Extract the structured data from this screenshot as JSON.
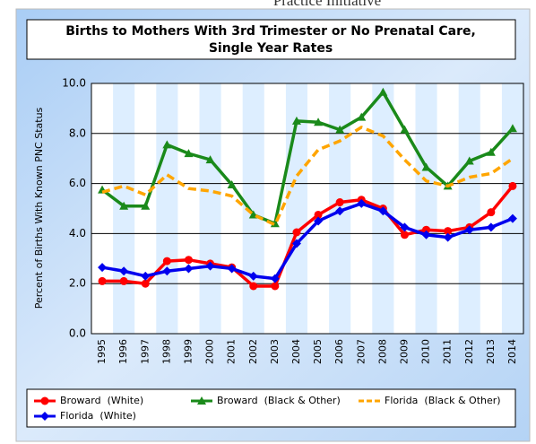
{
  "page_heading": "Practice Initiative",
  "chart_data": {
    "type": "line",
    "title": "Births to Mothers With 3rd Trimester or No Prenatal Care,",
    "subtitle": "Single Year Rates",
    "y_label": "Percent of Births With Known PNC Status",
    "categories": [
      "1995",
      "1996",
      "1997",
      "1998",
      "1999",
      "2000",
      "2001",
      "2002",
      "2003",
      "2004",
      "2005",
      "2006",
      "2007",
      "2008",
      "2009",
      "2010",
      "2011",
      "2012",
      "2013",
      "2014"
    ],
    "ylim": [
      0,
      10
    ],
    "yticks": [
      {
        "value": 0,
        "label": "0.0"
      },
      {
        "value": 2,
        "label": "2.0"
      },
      {
        "value": 4,
        "label": "4.0"
      },
      {
        "value": 6,
        "label": "6.0"
      },
      {
        "value": 8,
        "label": "8.0"
      },
      {
        "value": 10,
        "label": "10.0"
      }
    ],
    "grid": true,
    "legend": "bottom",
    "series": [
      {
        "name": "Broward  (White)",
        "color": "#ff0000",
        "marker": "circle",
        "values": [
          2.1,
          2.1,
          2.0,
          2.9,
          2.95,
          2.8,
          2.65,
          1.9,
          1.9,
          4.05,
          4.75,
          5.25,
          5.35,
          5.0,
          3.95,
          4.15,
          4.1,
          4.25,
          4.85,
          5.9
        ]
      },
      {
        "name": "Broward  (Black & Other)",
        "color": "#1a8a1a",
        "marker": "triangle",
        "values": [
          5.75,
          5.1,
          5.1,
          7.55,
          7.2,
          6.95,
          5.95,
          4.75,
          4.4,
          8.5,
          8.45,
          8.15,
          8.65,
          9.65,
          8.15,
          6.65,
          5.9,
          6.9,
          7.25,
          8.2
        ]
      },
      {
        "name": "Florida  (Black & Other)",
        "color": "#ffa500",
        "dashed": true,
        "values": [
          5.65,
          5.9,
          5.55,
          6.35,
          5.8,
          5.7,
          5.5,
          4.75,
          4.35,
          6.3,
          7.35,
          7.7,
          8.25,
          7.9,
          6.95,
          6.1,
          5.9,
          6.25,
          6.4,
          7.0
        ]
      },
      {
        "name": "Florida  (White)",
        "color": "#0000ee",
        "marker": "diamond",
        "values": [
          2.65,
          2.5,
          2.3,
          2.5,
          2.6,
          2.7,
          2.6,
          2.3,
          2.2,
          3.6,
          4.5,
          4.9,
          5.2,
          4.9,
          4.25,
          3.95,
          3.85,
          4.15,
          4.25,
          4.6
        ]
      }
    ]
  }
}
